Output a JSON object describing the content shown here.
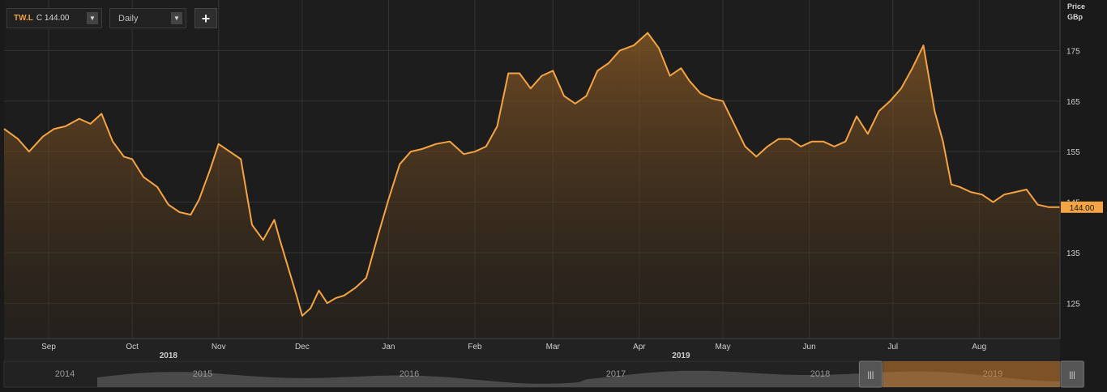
{
  "toolbar": {
    "symbol": "TW.L",
    "close_label": "C 144.00",
    "period": "Daily",
    "add_label": "+"
  },
  "axis": {
    "price_label": "Price",
    "currency_label": "GBp"
  },
  "chart_data": {
    "type": "area",
    "title": "",
    "xlabel": "",
    "ylabel": "Price GBp",
    "line_color": "#f5a444",
    "ylim": [
      118,
      185
    ],
    "yticks": [
      125,
      135,
      145,
      155,
      165,
      175
    ],
    "x_range": [
      "2018-08-16",
      "2019-08-30"
    ],
    "month_ticks": [
      {
        "date": "2018-09-01",
        "label": "Sep"
      },
      {
        "date": "2018-10-01",
        "label": "Oct"
      },
      {
        "date": "2018-11-01",
        "label": "Nov"
      },
      {
        "date": "2018-12-01",
        "label": "Dec"
      },
      {
        "date": "2019-01-01",
        "label": "Jan"
      },
      {
        "date": "2019-02-01",
        "label": "Feb"
      },
      {
        "date": "2019-03-01",
        "label": "Mar"
      },
      {
        "date": "2019-04-01",
        "label": "Apr"
      },
      {
        "date": "2019-05-01",
        "label": "May"
      },
      {
        "date": "2019-06-01",
        "label": "Jun"
      },
      {
        "date": "2019-07-01",
        "label": "Jul"
      },
      {
        "date": "2019-08-01",
        "label": "Aug"
      }
    ],
    "year_ticks": [
      {
        "date": "2018-10-14",
        "label": "2018"
      },
      {
        "date": "2019-04-16",
        "label": "2019"
      }
    ],
    "last_value": 144.0,
    "last_label": "144.00",
    "series": [
      {
        "x": [
          "2018-08-16",
          "2018-08-21",
          "2018-08-25",
          "2018-08-30",
          "2018-09-03",
          "2018-09-07",
          "2018-09-12",
          "2018-09-16",
          "2018-09-20",
          "2018-09-24",
          "2018-09-28",
          "2018-10-01",
          "2018-10-05",
          "2018-10-10",
          "2018-10-14",
          "2018-10-18",
          "2018-10-22",
          "2018-10-25",
          "2018-10-29",
          "2018-11-01",
          "2018-11-05",
          "2018-11-09",
          "2018-11-13",
          "2018-11-17",
          "2018-11-21",
          "2018-11-23",
          "2018-11-26",
          "2018-11-29",
          "2018-12-01",
          "2018-12-04",
          "2018-12-07",
          "2018-12-10",
          "2018-12-13",
          "2018-12-16",
          "2018-12-20",
          "2018-12-24",
          "2018-12-28",
          "2019-01-01",
          "2019-01-05",
          "2019-01-09",
          "2019-01-13",
          "2019-01-18",
          "2019-01-23",
          "2019-01-28",
          "2019-02-01",
          "2019-02-05",
          "2019-02-09",
          "2019-02-13",
          "2019-02-17",
          "2019-02-21",
          "2019-02-25",
          "2019-03-01",
          "2019-03-05",
          "2019-03-09",
          "2019-03-13",
          "2019-03-17",
          "2019-03-21",
          "2019-03-25",
          "2019-03-30",
          "2019-04-04",
          "2019-04-08",
          "2019-04-12",
          "2019-04-16",
          "2019-04-19",
          "2019-04-23",
          "2019-04-27",
          "2019-05-01",
          "2019-05-05",
          "2019-05-09",
          "2019-05-13",
          "2019-05-17",
          "2019-05-21",
          "2019-05-25",
          "2019-05-29",
          "2019-06-02",
          "2019-06-06",
          "2019-06-10",
          "2019-06-14",
          "2019-06-18",
          "2019-06-22",
          "2019-06-26",
          "2019-06-30",
          "2019-07-04",
          "2019-07-08",
          "2019-07-12",
          "2019-07-16",
          "2019-07-19",
          "2019-07-22",
          "2019-07-25",
          "2019-07-29",
          "2019-08-02",
          "2019-08-06",
          "2019-08-10",
          "2019-08-14",
          "2019-08-18",
          "2019-08-22",
          "2019-08-26",
          "2019-08-30"
        ],
        "y": [
          159.5,
          157.5,
          155.0,
          158.0,
          159.5,
          160.0,
          161.5,
          160.5,
          162.5,
          157.0,
          154.0,
          153.5,
          150.0,
          148.0,
          144.5,
          143.0,
          142.5,
          145.5,
          151.5,
          156.5,
          155.0,
          153.5,
          140.5,
          137.5,
          141.5,
          137.5,
          132.0,
          126.5,
          122.5,
          124.0,
          127.5,
          125.0,
          126.0,
          126.5,
          128.0,
          130.0,
          138.0,
          145.5,
          152.5,
          155.0,
          155.5,
          156.5,
          157.0,
          154.5,
          155.0,
          156.0,
          160.0,
          170.5,
          170.5,
          167.5,
          170.0,
          171.0,
          166.0,
          164.5,
          166.0,
          171.0,
          172.5,
          175.0,
          176.0,
          178.5,
          175.5,
          170.0,
          171.5,
          169.0,
          166.5,
          165.5,
          165.0,
          160.5,
          156.0,
          154.0,
          156.0,
          157.5,
          157.5,
          156.0,
          157.0,
          157.0,
          156.0,
          157.0,
          162.0,
          158.5,
          163.0,
          165.0,
          167.5,
          171.5,
          176.0,
          163.0,
          157.0,
          148.5,
          148.0,
          147.0,
          146.5,
          145.0,
          146.5,
          147.0,
          147.5,
          144.5,
          144.0,
          144.0
        ]
      }
    ]
  },
  "navigator": {
    "years": [
      "2014",
      "2015",
      "2016",
      "2017",
      "2018",
      "2019"
    ],
    "selection_start": 0.8,
    "selection_end": 1.0
  }
}
